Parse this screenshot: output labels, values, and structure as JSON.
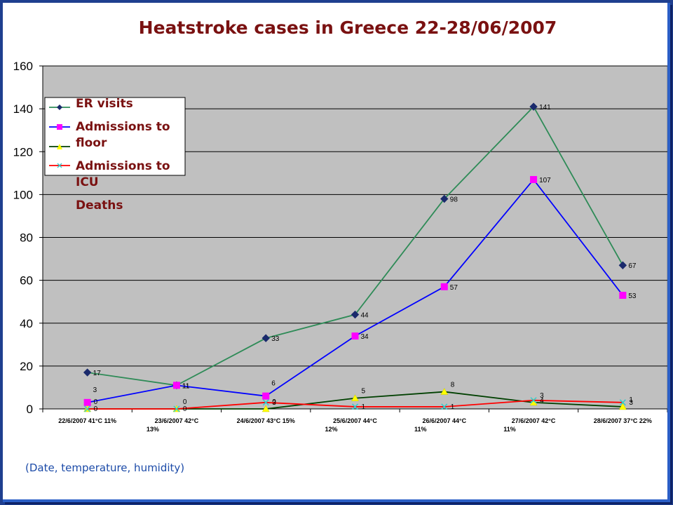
{
  "chart_data": {
    "type": "line",
    "title": "Heatstroke cases in Greece 22-28/06/2007",
    "categories": [
      [
        "22/6/2007 41°C 11%",
        ""
      ],
      [
        "23/6/2007 42°C",
        "13%"
      ],
      [
        "24/6/2007 43°C 15%",
        ""
      ],
      [
        "25/6/2007 44°C",
        "12%"
      ],
      [
        "26/6/2007 44°C",
        "11%"
      ],
      [
        "27/6/2007 42°C",
        "11%"
      ],
      [
        "28/6/2007 37°C 22%",
        ""
      ]
    ],
    "ylim": [
      0,
      160
    ],
    "yticks": [
      0,
      20,
      40,
      60,
      80,
      100,
      120,
      140,
      160
    ],
    "grid": true,
    "legend_position": "top-left",
    "series": [
      {
        "name": "ER visits",
        "values": [
          17,
          11,
          33,
          44,
          98,
          141,
          67
        ],
        "color": "#2e8b57",
        "marker": "diamond",
        "marker_color": "#1a2a6c"
      },
      {
        "name": "Admissions to floor",
        "values": [
          3,
          11,
          6,
          34,
          57,
          107,
          53
        ],
        "color": "#0000ff",
        "marker": "square",
        "marker_color": "#ff00ff"
      },
      {
        "name": "Admissions to ICU",
        "values": [
          0,
          0,
          0,
          5,
          8,
          3,
          1
        ],
        "color": "#004000",
        "marker": "triangle",
        "marker_color": "#ffff00"
      },
      {
        "name": "Deaths",
        "values": [
          0,
          0,
          3,
          1,
          1,
          4,
          3
        ],
        "color": "#ff0000",
        "marker": "x",
        "marker_color": "#33cccc"
      }
    ],
    "legend_rows": [
      [
        "ER visits"
      ],
      [
        "Admissions to",
        "floor"
      ],
      [
        "Admissions to",
        "ICU"
      ],
      [
        "Deaths"
      ]
    ],
    "note": "(Date, temperature, humidity)",
    "colors": {
      "plot_background": "#c0c0c0",
      "gridline": "#000000",
      "title": "#7a1111",
      "note": "#1c4ba8",
      "slide_border": "#1f3f8f"
    }
  }
}
